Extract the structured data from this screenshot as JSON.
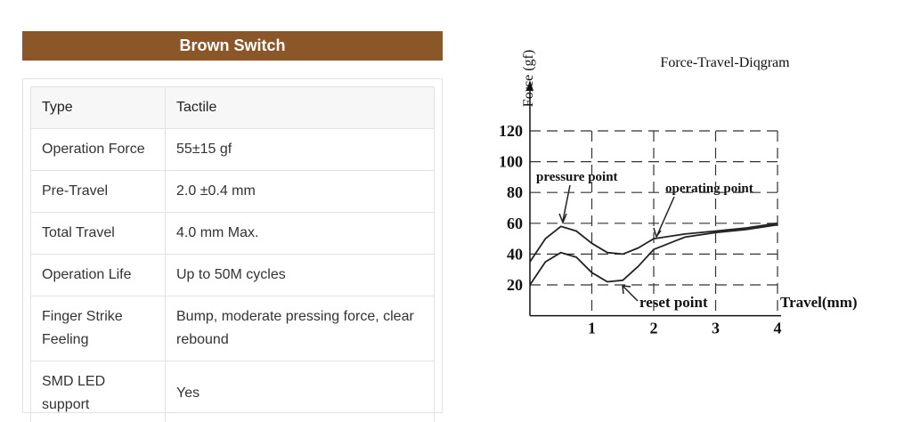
{
  "header": {
    "title": "Brown Switch"
  },
  "table": {
    "rows": [
      [
        "Type",
        "Tactile"
      ],
      [
        "Operation Force",
        "55±15 gf"
      ],
      [
        "Pre-Travel",
        "2.0 ±0.4 mm"
      ],
      [
        "Total Travel",
        "4.0 mm Max."
      ],
      [
        "Operation Life",
        "Up to 50M cycles"
      ],
      [
        "Finger Strike Feeling",
        "Bump, moderate pressing force, clear rebound"
      ],
      [
        "SMD LED support",
        "Yes"
      ]
    ]
  },
  "chart_data": {
    "type": "line",
    "title": "Force-Travel-Diqgram",
    "y_label": "Force (gf)",
    "x_label": "Travel(mm)",
    "annotations": [
      "pressure point",
      "operating point",
      "reset point"
    ],
    "x": [
      0,
      0.25,
      0.5,
      0.75,
      1,
      1.25,
      1.5,
      1.75,
      2,
      2.5,
      3,
      3.5,
      4
    ],
    "series": [
      {
        "color": "#222222",
        "values": [
          35,
          50,
          58,
          55,
          47,
          41,
          40,
          44,
          50,
          53,
          55,
          57,
          60
        ]
      },
      {
        "color": "#222222",
        "values": [
          20,
          35,
          41,
          38,
          28,
          22,
          23,
          32,
          43,
          51,
          54,
          56,
          59
        ]
      }
    ],
    "xlim": [
      0,
      4
    ],
    "xticks": [
      1,
      2,
      3,
      4
    ],
    "ylim": [
      0,
      120
    ],
    "yticks": [
      20,
      40,
      60,
      80,
      100,
      120
    ],
    "grid": true
  }
}
